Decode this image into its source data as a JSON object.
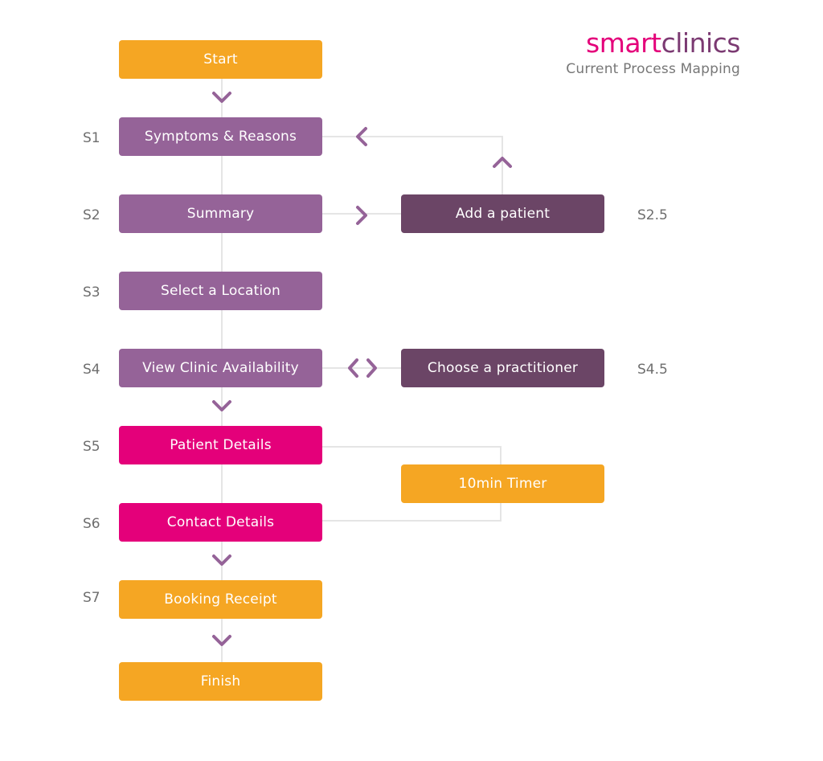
{
  "brand": {
    "name_part1": "smart",
    "name_part2": "clinics",
    "subtitle": "Current Process Mapping",
    "color_part1": "#e4007a",
    "color_part2": "#7b3a72"
  },
  "colors": {
    "orange": "#f5a623",
    "purple": "#956398",
    "dark_purple": "#6b4566",
    "magenta": "#e4007a",
    "connector": "#e5e5e5",
    "chevron": "#956398"
  },
  "nodes": {
    "start": {
      "label": "Start"
    },
    "s1": {
      "label": "Symptoms & Reasons",
      "step": "S1"
    },
    "s2": {
      "label": "Summary",
      "step": "S2"
    },
    "s2_5": {
      "label": "Add a patient",
      "step": "S2.5"
    },
    "s3": {
      "label": "Select a Location",
      "step": "S3"
    },
    "s4": {
      "label": "View Clinic Availability",
      "step": "S4"
    },
    "s4_5": {
      "label": "Choose a practitioner",
      "step": "S4.5"
    },
    "s5": {
      "label": "Patient Details",
      "step": "S5"
    },
    "timer": {
      "label": "10min Timer"
    },
    "s6": {
      "label": "Contact Details",
      "step": "S6"
    },
    "s7": {
      "label": "Booking Receipt",
      "step": "S7"
    },
    "finish": {
      "label": "Finish"
    }
  },
  "chevron_icons": [
    "chevron-down-icon",
    "chevron-left-icon",
    "chevron-up-icon",
    "chevron-right-icon"
  ]
}
